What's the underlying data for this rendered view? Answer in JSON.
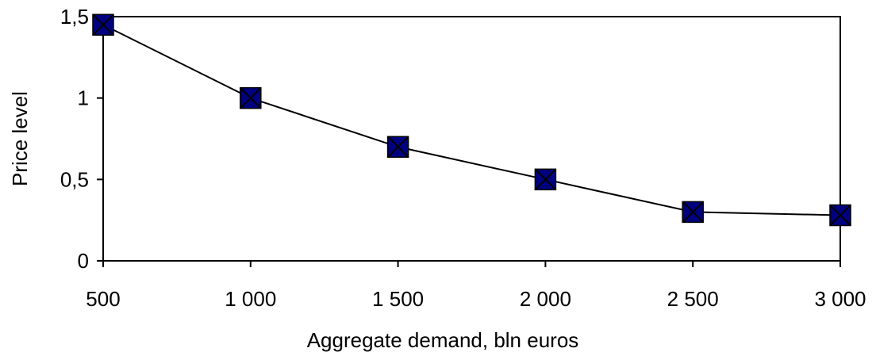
{
  "chart_data": {
    "type": "line",
    "title": "",
    "xlabel": "Aggregate demand, bln euros",
    "ylabel": "Price level",
    "x": [
      500,
      1000,
      1500,
      2000,
      2500,
      3000
    ],
    "x_tick_labels": [
      "500",
      "1 000",
      "1 500",
      "2 000",
      "2 500",
      "3 000"
    ],
    "y_tick_labels": [
      "0",
      "0,5",
      "1",
      "1,5"
    ],
    "y_ticks": [
      0,
      0.5,
      1,
      1.5
    ],
    "xlim": [
      500,
      3000
    ],
    "ylim": [
      0,
      1.5
    ],
    "grid": false,
    "series": [
      {
        "values": [
          1.45,
          1.0,
          0.7,
          0.5,
          0.3,
          0.28
        ]
      }
    ],
    "marker": "square-x",
    "colors": {
      "marker_fill": "#000080",
      "line": "#000000",
      "frame": "#000000"
    }
  }
}
